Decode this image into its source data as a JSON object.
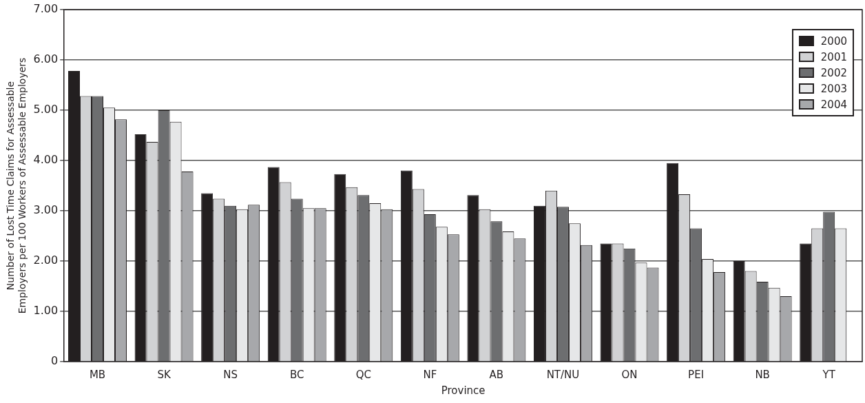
{
  "chart_data": {
    "type": "bar",
    "xlabel": "Province",
    "ylabel": "Number of Lost Time Claims for Assessable Employers per 100 Workers of Assessable Employers",
    "categories": [
      "MB",
      "SK",
      "NS",
      "BC",
      "QC",
      "NF",
      "AB",
      "NT/NU",
      "ON",
      "PEI",
      "NB",
      "YT"
    ],
    "series": [
      {
        "name": "2000",
        "color": "#231f20",
        "values": [
          5.78,
          4.52,
          3.35,
          3.87,
          3.73,
          3.8,
          3.31,
          3.1,
          2.35,
          3.95,
          2.0,
          2.35
        ]
      },
      {
        "name": "2001",
        "color": "#d1d2d4",
        "values": [
          5.28,
          4.37,
          3.24,
          3.57,
          3.47,
          3.43,
          3.03,
          3.4,
          2.35,
          3.33,
          1.8,
          2.65
        ]
      },
      {
        "name": "2002",
        "color": "#6d6e70",
        "values": [
          5.28,
          5.0,
          3.1,
          3.24,
          3.31,
          2.93,
          2.79,
          3.08,
          2.25,
          2.65,
          1.59,
          2.98
        ]
      },
      {
        "name": "2003",
        "color": "#e6e7e8",
        "values": [
          5.05,
          4.77,
          3.03,
          3.05,
          3.15,
          2.68,
          2.59,
          2.75,
          1.97,
          2.04,
          1.47,
          2.65
        ]
      },
      {
        "name": "2004",
        "color": "#a7a8ab",
        "values": [
          4.82,
          3.78,
          3.12,
          3.05,
          3.03,
          2.53,
          2.45,
          2.32,
          1.87,
          1.78,
          1.3,
          null
        ]
      }
    ],
    "ylim": [
      0,
      7
    ],
    "yticks": [
      {
        "value": 0,
        "label": "0"
      },
      {
        "value": 1,
        "label": "1.00"
      },
      {
        "value": 2,
        "label": "2.00"
      },
      {
        "value": 3,
        "label": "3.00"
      },
      {
        "value": 4,
        "label": "4.00"
      },
      {
        "value": 5,
        "label": "5.00"
      },
      {
        "value": 6,
        "label": "6.00"
      },
      {
        "value": 7,
        "label": "7.00"
      }
    ],
    "grid": "y",
    "legend": "top right"
  }
}
